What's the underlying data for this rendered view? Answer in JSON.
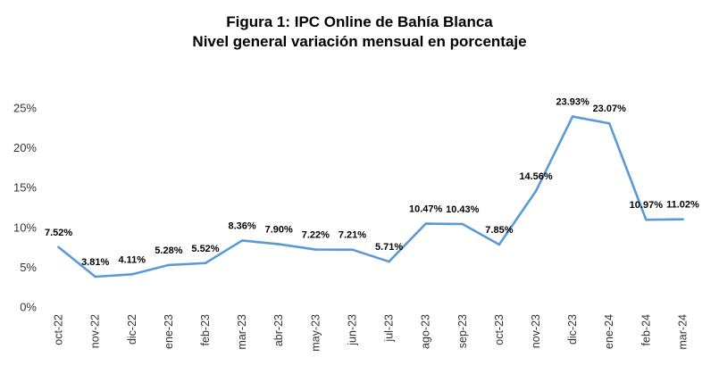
{
  "chart_data": {
    "type": "line",
    "title": "Figura 1: IPC Online de Bahía Blanca",
    "subtitle": "Nivel general variación mensual en porcentaje",
    "categories": [
      "oct-22",
      "nov-22",
      "dic-22",
      "ene-23",
      "feb-23",
      "mar-23",
      "abr-23",
      "may-23",
      "jun-23",
      "jul-23",
      "ago-23",
      "sep-23",
      "oct-23",
      "nov-23",
      "dic-23",
      "ene-24",
      "feb-24",
      "mar-24"
    ],
    "series": [
      {
        "values": [
          7.52,
          3.81,
          4.11,
          5.28,
          5.52,
          8.36,
          7.9,
          7.22,
          7.21,
          5.71,
          10.47,
          10.43,
          7.85,
          14.56,
          23.93,
          23.07,
          10.97,
          11.02
        ],
        "labels": [
          "7.52%",
          "3.81%",
          "4.11%",
          "5.28%",
          "5.52%",
          "8.36%",
          "7.90%",
          "7.22%",
          "7.21%",
          "5.71%",
          "10.47%",
          "10.43%",
          "7.85%",
          "14.56%",
          "23.93%",
          "23.07%",
          "10.97%",
          "11.02%"
        ],
        "color": "#5b9bd5"
      }
    ],
    "ylim": [
      0,
      25
    ],
    "yticks": [
      0,
      5,
      10,
      15,
      20,
      25
    ],
    "ytick_labels": [
      "0%",
      "5%",
      "10%",
      "15%",
      "20%",
      "25%"
    ],
    "xlabel": "",
    "ylabel": "",
    "grid": false,
    "legend": "none"
  }
}
